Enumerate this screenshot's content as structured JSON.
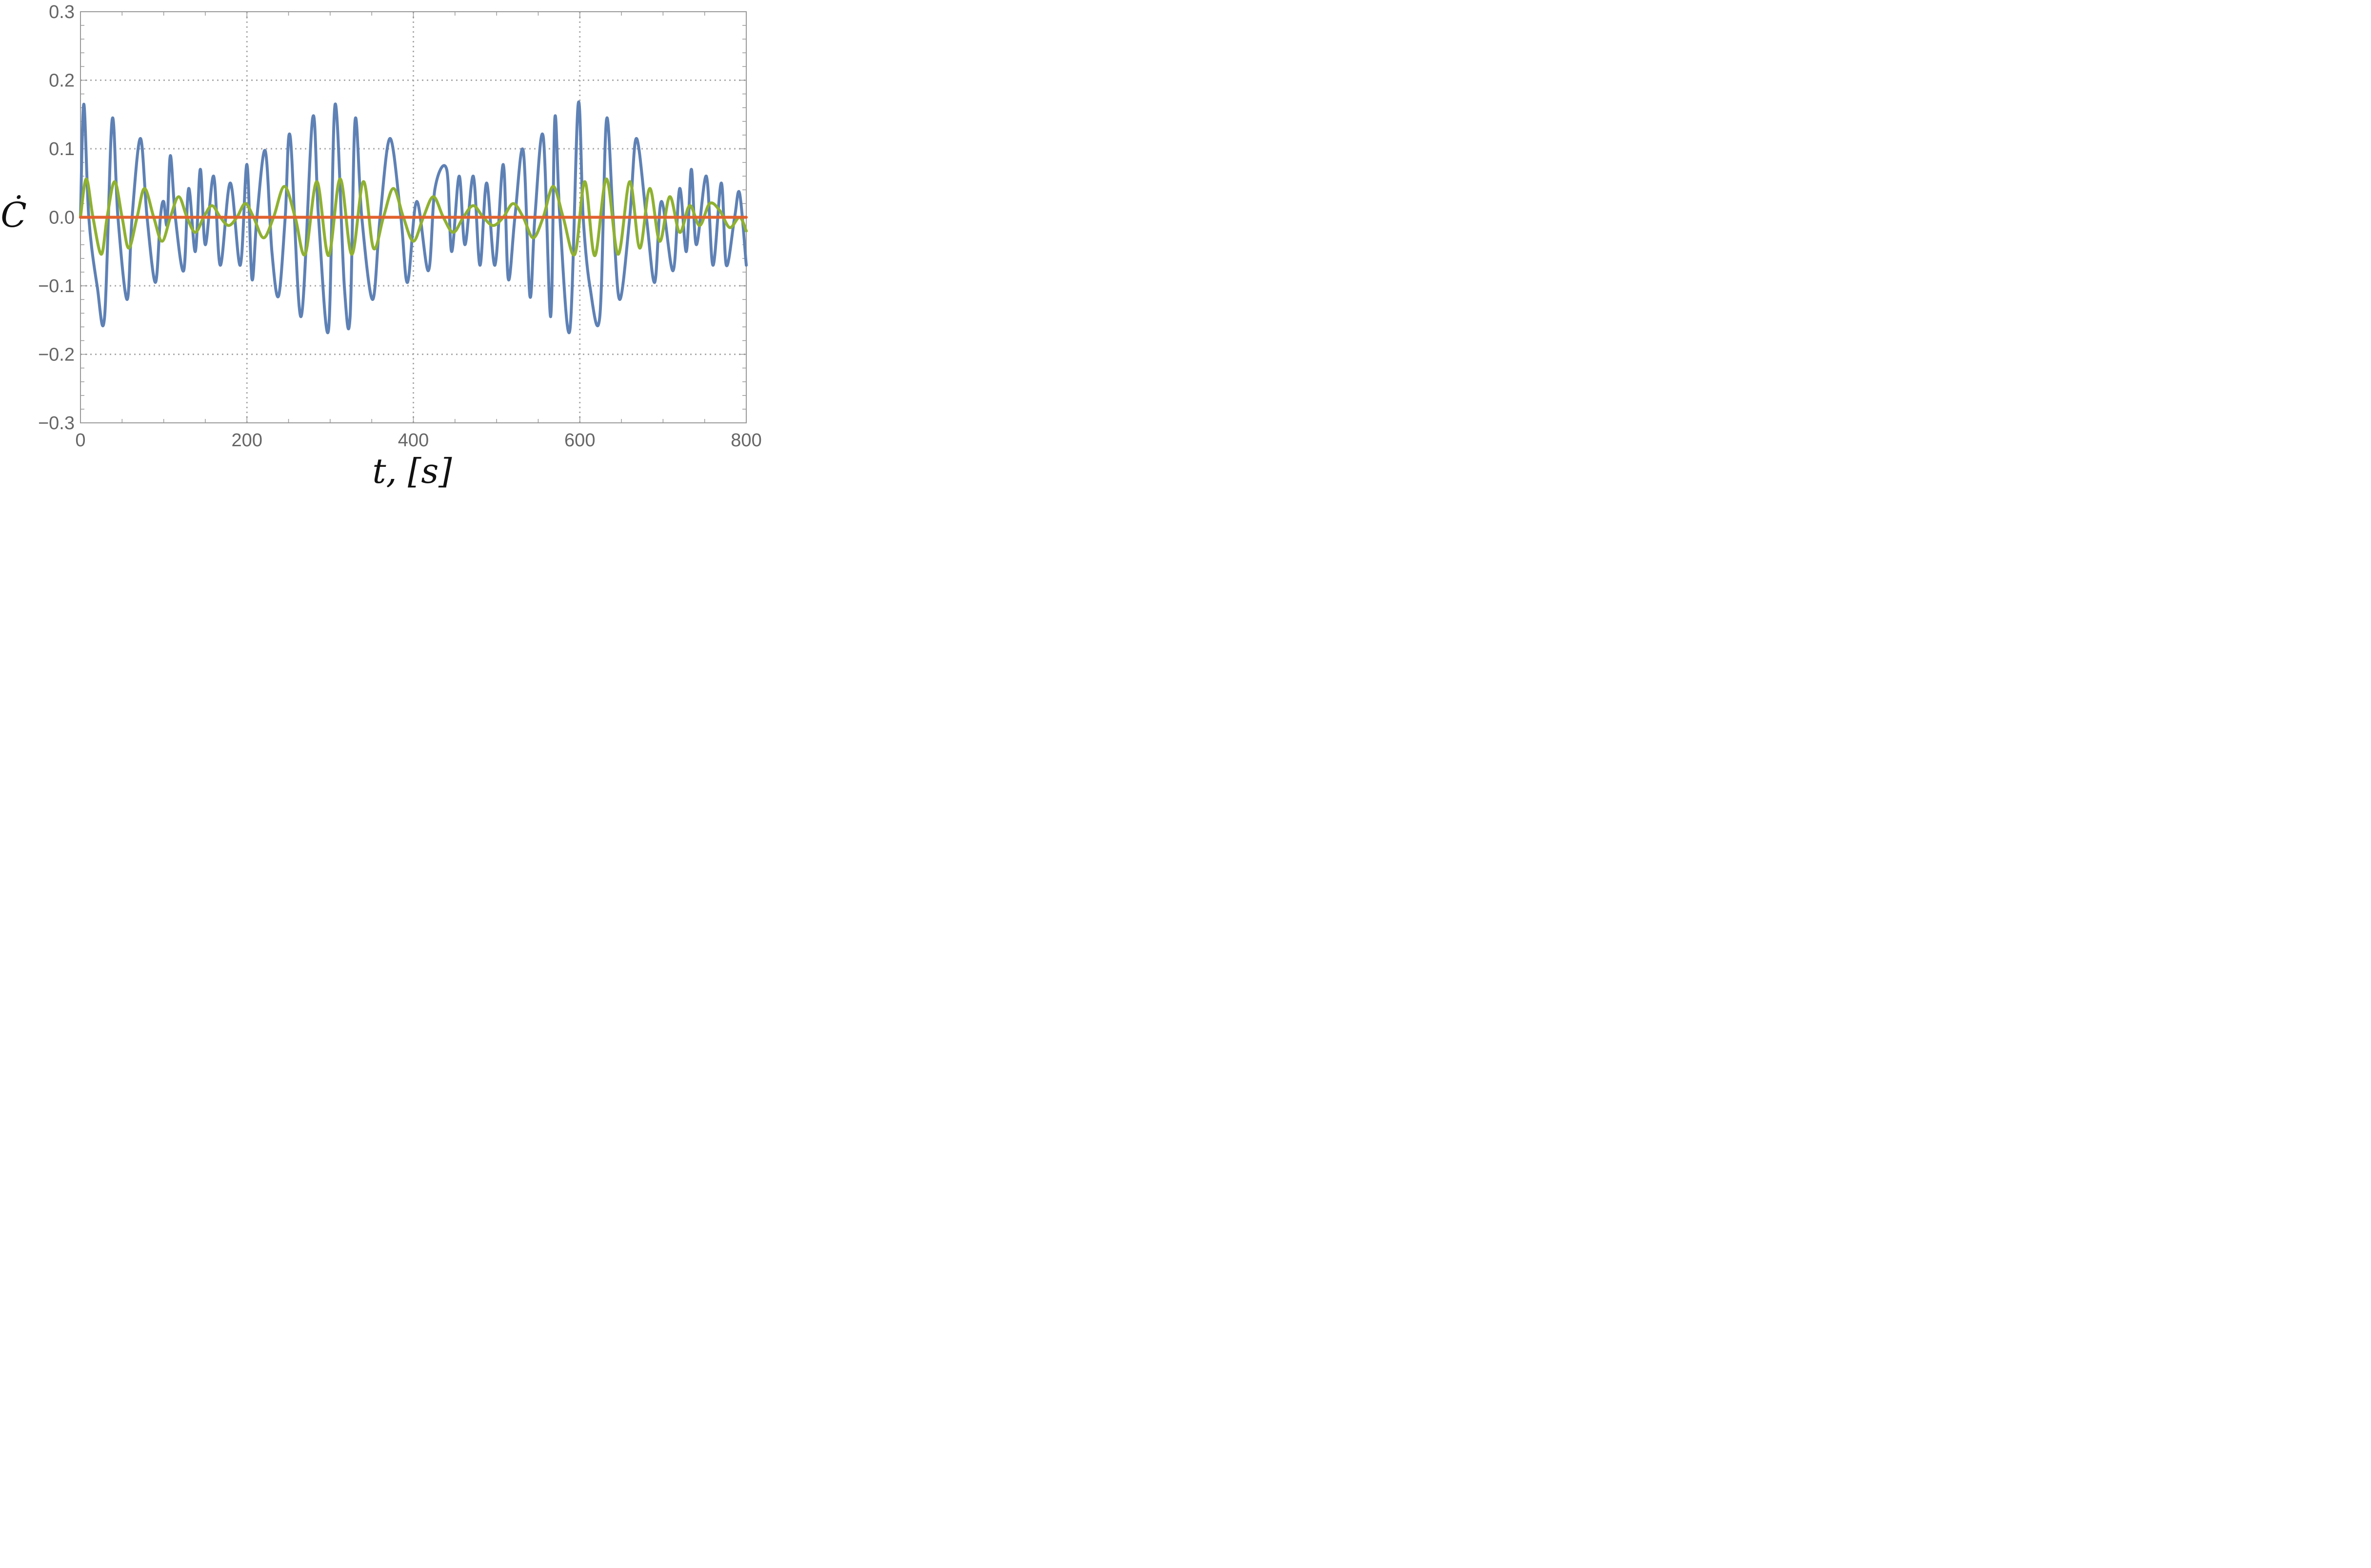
{
  "chart_data": {
    "type": "line",
    "xlabel": "t, [s]",
    "ylabel": "Ċ",
    "xlim": [
      0,
      800
    ],
    "ylim": [
      -0.3,
      0.3
    ],
    "xticks": [
      "0",
      "200",
      "400",
      "600",
      "800"
    ],
    "yticks": [
      "0.3",
      "0.2",
      "0.1",
      "0.0",
      "−0.1",
      "−0.2",
      "−0.3"
    ],
    "xtick_values": [
      0,
      200,
      400,
      600,
      800
    ],
    "ytick_values": [
      0.3,
      0.2,
      0.1,
      0.0,
      -0.1,
      -0.2,
      -0.3
    ],
    "grid": true,
    "series": [
      {
        "color": "#5e81b5",
        "x": [
          0,
          4,
          10,
          20,
          29,
          38,
          45,
          56,
          62,
          72,
          80,
          90,
          96,
          100,
          104,
          108,
          114,
          124,
          130,
          138,
          144,
          150,
          160,
          168,
          180,
          192,
          200,
          206,
          212,
          222,
          230,
          238,
          246,
          252,
          265,
          279,
          286,
          298,
          306,
          317,
          324,
          330,
          338,
          351,
          360,
          372,
          385,
          393,
          404,
          418,
          426,
          440,
          446,
          455,
          462,
          472,
          480,
          488,
          498,
          508,
          514,
          522,
          532,
          540,
          546,
          556,
          565,
          570,
          576,
          588,
          598,
          604,
          612,
          624,
          632,
          640,
          648,
          660,
          668,
          680,
          690,
          698,
          712,
          720,
          728,
          734,
          740,
          752,
          760,
          770,
          776,
          786,
          792,
          800
        ],
        "y": [
          0.0,
          0.165,
          0.0,
          -0.1,
          -0.145,
          0.142,
          0.0,
          -0.12,
          0.0,
          0.115,
          0.0,
          -0.095,
          0.0,
          0.023,
          -0.01,
          0.09,
          0.0,
          -0.078,
          0.042,
          -0.05,
          0.07,
          -0.04,
          0.06,
          -0.07,
          0.05,
          -0.07,
          0.077,
          -0.09,
          0.0,
          0.097,
          -0.05,
          -0.115,
          0.0,
          0.118,
          -0.145,
          0.145,
          0.0,
          -0.165,
          0.165,
          -0.1,
          -0.145,
          0.142,
          0.0,
          -0.12,
          0.0,
          0.115,
          0.0,
          -0.095,
          0.023,
          -0.078,
          0.042,
          0.07,
          -0.05,
          0.06,
          -0.04,
          0.06,
          -0.07,
          0.05,
          -0.07,
          0.077,
          -0.09,
          0.0,
          0.097,
          -0.115,
          0.0,
          0.118,
          -0.145,
          0.145,
          0.0,
          -0.165,
          0.165,
          0.0,
          -0.1,
          -0.145,
          0.142,
          0.0,
          -0.12,
          0.0,
          0.115,
          0.0,
          -0.095,
          0.023,
          -0.078,
          0.042,
          -0.05,
          0.07,
          -0.04,
          0.06,
          -0.07,
          0.05,
          -0.07,
          0.0,
          0.035,
          -0.07
        ]
      },
      {
        "color": "#8fb131",
        "x": [
          0,
          7,
          15,
          25,
          32,
          41,
          50,
          58,
          68,
          77,
          88,
          98,
          108,
          118,
          128,
          138,
          148,
          158,
          168,
          178,
          188,
          198,
          208,
          220,
          232,
          245,
          258,
          270,
          284,
          298,
          312,
          326,
          340,
          352,
          364,
          376,
          388,
          400,
          412,
          424,
          436,
          448,
          460,
          472,
          484,
          496,
          508,
          520,
          532,
          544,
          556,
          568,
          580,
          594,
          606,
          618,
          632,
          646,
          660,
          672,
          684,
          696,
          708,
          720,
          732,
          744,
          756,
          768,
          780,
          792,
          800
        ],
        "y": [
          0.0,
          0.056,
          0.0,
          -0.054,
          0.0,
          0.052,
          0.0,
          -0.045,
          0.0,
          0.042,
          0.0,
          -0.035,
          0.0,
          0.03,
          0.0,
          -0.022,
          0.0,
          0.017,
          0.0,
          -0.012,
          0.0,
          0.02,
          0.0,
          -0.03,
          0.0,
          0.045,
          0.0,
          -0.054,
          0.052,
          -0.056,
          0.056,
          -0.054,
          0.052,
          -0.045,
          0.0,
          0.042,
          0.0,
          -0.035,
          0.0,
          0.03,
          0.0,
          -0.022,
          0.0,
          0.017,
          0.0,
          -0.012,
          0.0,
          0.02,
          0.0,
          -0.03,
          0.0,
          0.045,
          0.0,
          -0.054,
          0.052,
          -0.056,
          0.056,
          -0.054,
          0.052,
          -0.045,
          0.042,
          -0.035,
          0.03,
          -0.022,
          0.017,
          -0.012,
          0.02,
          0.01,
          -0.015,
          0.0,
          -0.02
        ]
      },
      {
        "color": "#e1622f",
        "x": [
          0,
          800
        ],
        "y": [
          0.0,
          0.0
        ]
      }
    ]
  }
}
